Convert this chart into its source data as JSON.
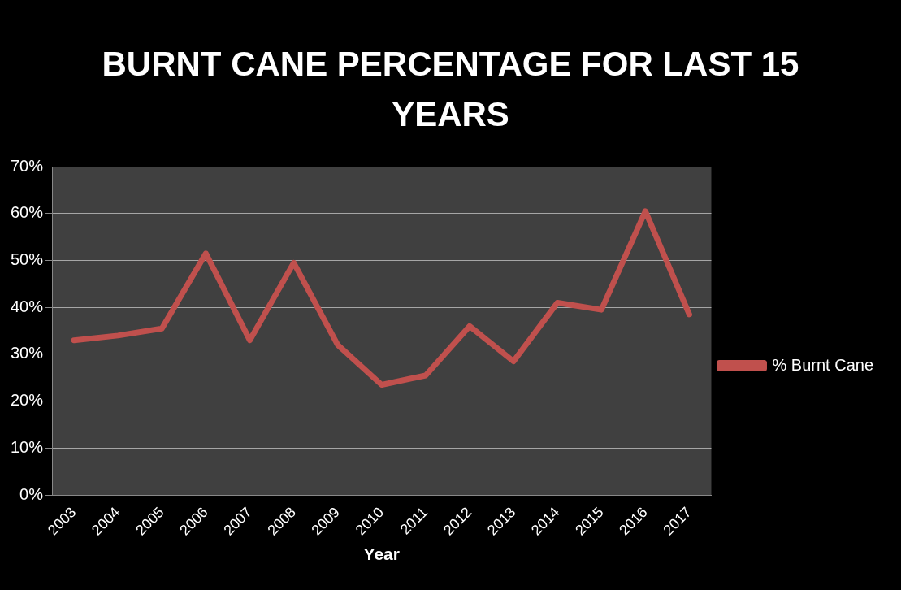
{
  "chart_data": {
    "type": "line",
    "title": "BURNT CANE PERCENTAGE FOR LAST 15 YEARS",
    "xlabel": "Year",
    "categories": [
      "2003",
      "2004",
      "2005",
      "2006",
      "2007",
      "2008",
      "2009",
      "2010",
      "2011",
      "2012",
      "2013",
      "2014",
      "2015",
      "2016",
      "2017"
    ],
    "series": [
      {
        "name": "% Burnt Cane",
        "color": "#c0504d",
        "values": [
          33,
          34,
          35.5,
          51.5,
          33,
          49.5,
          32,
          23.5,
          25.5,
          36,
          28.5,
          41,
          39.5,
          60.5,
          38.5
        ]
      }
    ],
    "ylim": [
      0,
      70
    ],
    "yticks": [
      {
        "value": 0,
        "label": "0%"
      },
      {
        "value": 10,
        "label": "10%"
      },
      {
        "value": 20,
        "label": "20%"
      },
      {
        "value": 30,
        "label": "30%"
      },
      {
        "value": 40,
        "label": "40%"
      },
      {
        "value": 50,
        "label": "50%"
      },
      {
        "value": 60,
        "label": "60%"
      },
      {
        "value": 70,
        "label": "70%"
      }
    ],
    "grid": "y",
    "legend": "right",
    "marker": "none",
    "line_style": "solid"
  }
}
